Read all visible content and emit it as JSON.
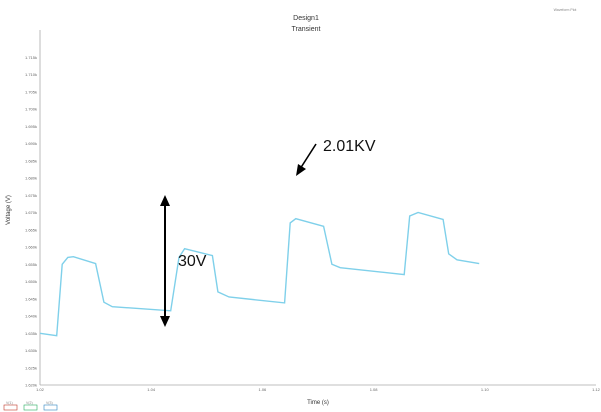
{
  "chart_data": {
    "type": "line",
    "title": "Design1",
    "subtitle": "Transient",
    "corner_note": "Waveform Plot",
    "xlabel": "Time (s)",
    "ylabel": "Voltage (V)",
    "xlim": [
      1.02,
      1.12
    ],
    "ylim": [
      1.62,
      1.72
    ],
    "x_ticks": [
      "1.02",
      "1.04",
      "1.06",
      "1.08",
      "1.10",
      "1.12"
    ],
    "y_ticks": [
      "1.620k",
      "1.625k",
      "1.630k",
      "1.635k",
      "1.640k",
      "1.645k",
      "1.650k",
      "1.655k",
      "1.660k",
      "1.665k",
      "1.670k",
      "1.675k",
      "1.680k",
      "1.685k",
      "1.690k",
      "1.695k",
      "1.700k",
      "1.705k",
      "1.710k",
      "1.715k"
    ],
    "grid": false,
    "line_color": "#7fd0ea",
    "series": [
      {
        "values": [
          [
            1.02,
            1.635
          ],
          [
            1.023,
            1.6343
          ],
          [
            1.024,
            1.655
          ],
          [
            1.025,
            1.657
          ],
          [
            1.026,
            1.6572
          ],
          [
            1.03,
            1.6552
          ],
          [
            1.0315,
            1.644
          ],
          [
            1.033,
            1.6427
          ],
          [
            1.0435,
            1.6415
          ],
          [
            1.045,
            1.657
          ],
          [
            1.046,
            1.6595
          ],
          [
            1.051,
            1.6575
          ],
          [
            1.052,
            1.647
          ],
          [
            1.054,
            1.6455
          ],
          [
            1.064,
            1.6438
          ],
          [
            1.065,
            1.667
          ],
          [
            1.066,
            1.6682
          ],
          [
            1.071,
            1.666
          ],
          [
            1.0725,
            1.655
          ],
          [
            1.074,
            1.654
          ],
          [
            1.0855,
            1.652
          ],
          [
            1.0865,
            1.669
          ],
          [
            1.088,
            1.67
          ],
          [
            1.0925,
            1.668
          ],
          [
            1.0935,
            1.658
          ],
          [
            1.095,
            1.6563
          ],
          [
            1.099,
            1.6552
          ]
        ]
      }
    ],
    "annotations": [
      {
        "text": "30V"
      },
      {
        "text": "2.01KV"
      }
    ],
    "legend": [
      {
        "label": "V(1)",
        "color": "#c0392b"
      },
      {
        "label": "V(2)",
        "color": "#27ae60"
      },
      {
        "label": "V(3)",
        "color": "#2e86c1"
      }
    ]
  }
}
